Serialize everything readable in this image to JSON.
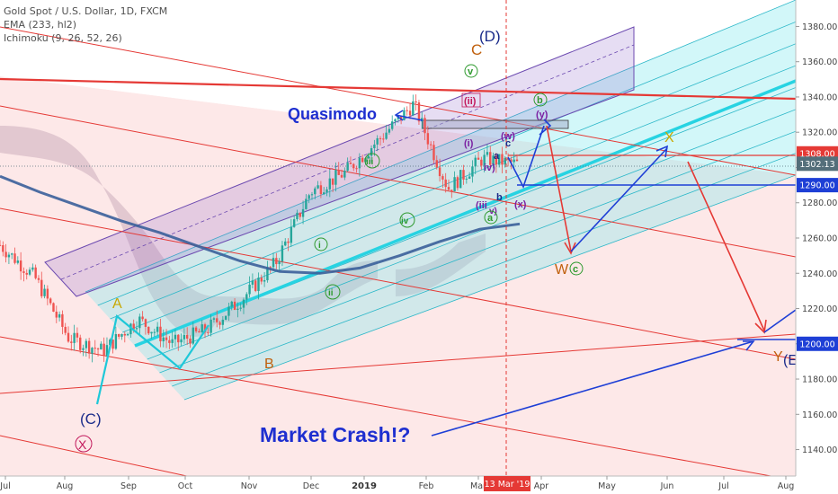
{
  "header": {
    "line1": "Gold Spot / U.S. Dollar, 1D, FXCM",
    "line2": "EMA (233, hl2)",
    "line3": "Ichimoku (9, 26, 52, 26)"
  },
  "chart_data": {
    "type": "line",
    "title": "Gold Spot / U.S. Dollar, 1D, FXCM",
    "ylim": [
      1125,
      1395
    ],
    "y_ticks": [
      "1140.00",
      "1160.00",
      "1180.00",
      "1200.00",
      "1220.00",
      "1240.00",
      "1260.00",
      "1280.00",
      "1300.00",
      "1320.00",
      "1340.00",
      "1360.00",
      "1380.00"
    ],
    "x_ticks": [
      "Jul",
      "Aug",
      "Sep",
      "Oct",
      "Nov",
      "Dec",
      "2019",
      "Feb",
      "Mar",
      "Apr",
      "May",
      "Jun",
      "Jul",
      "Aug"
    ],
    "price_badges": [
      {
        "label": "1308.00",
        "color": "#e53935"
      },
      {
        "label": "1302.13",
        "color": "#546e7a"
      },
      {
        "label": "1290.00",
        "color": "#1e3fd6"
      },
      {
        "label": "1200.00",
        "color": "#1e3fd6"
      }
    ],
    "date_marker": {
      "label": "13 Mar '19",
      "color": "#e53935"
    },
    "series": [
      {
        "name": "EMA (233, hl2)",
        "color": "#3a5f9a",
        "values": [
          1295,
          1286,
          1278,
          1270,
          1263,
          1255,
          1247,
          1241,
          1240,
          1243,
          1250,
          1258,
          1265,
          1268
        ]
      },
      {
        "name": "Gold Spot / U.S. Dollar",
        "color": "#26a69a",
        "values": [
          1256,
          1238,
          1203,
          1196,
          1214,
          1200,
          1208,
          1225,
          1246,
          1286,
          1297,
          1316,
          1336,
          1288,
          1305,
          1302
        ]
      }
    ],
    "annotations": {
      "quasimodo": "Quasimodo",
      "market_crash": "Market Crash!?",
      "wave_D": "(D)",
      "wave_C_big": "C",
      "wave_v": "v",
      "wave_ii_top": "(ii)",
      "wave_i_top": "(i)",
      "wave_iii": "iii",
      "wave_iv": "iv",
      "wave_i": "i",
      "wave_ii": "ii",
      "wave_b": "b",
      "wave_y": "(y)",
      "wave_w": "(w)",
      "wave_c_small": "c",
      "wave_a_small": "a",
      "wave_iv_p": "iv)",
      "wave_b_small": "b",
      "wave_iii_p": "(iii",
      "wave_v_p": "v)",
      "wave_a_g": "a",
      "wave_x": "(x)",
      "wave_X": "X",
      "wave_W": "W",
      "wave_c_g": "c",
      "wave_A": "A",
      "wave_B": "B",
      "wave_C_paren": "(C)",
      "wave_X_circ": "X",
      "wave_Y": "Y",
      "wave_E": "(E"
    }
  }
}
